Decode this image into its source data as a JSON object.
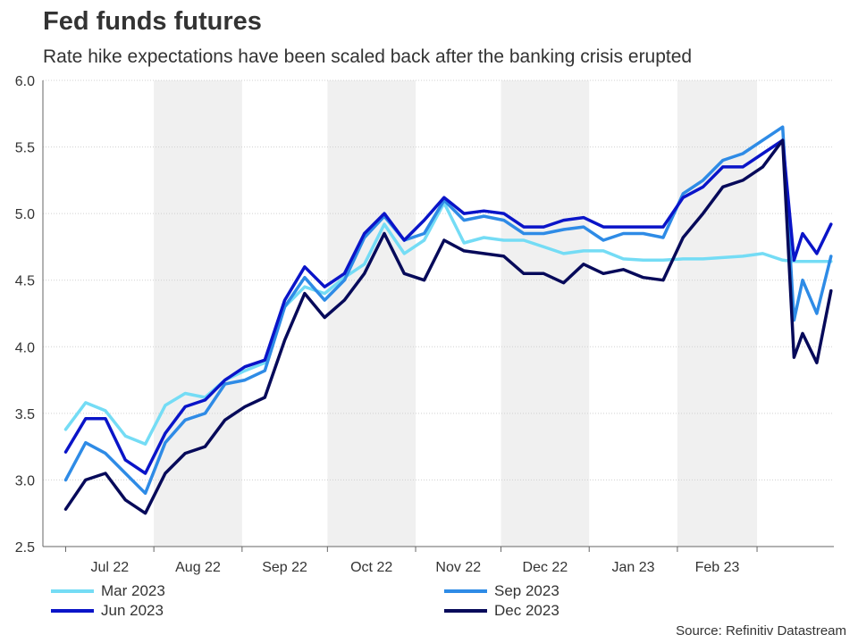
{
  "header": {
    "title": "Fed funds futures",
    "subtitle": "Rate hike expectations have been scaled back after the banking crisis erupted"
  },
  "source": "Source: Refinitiv Datastream",
  "chart_data": {
    "type": "line",
    "title": "Fed funds futures",
    "subtitle": "Rate hike expectations have been scaled back after the banking crisis erupted",
    "xlabel": "",
    "ylabel": "",
    "ylim": [
      2.5,
      6.0
    ],
    "yticks": [
      "2.5",
      "3.0",
      "3.5",
      "4.0",
      "4.5",
      "5.0",
      "5.5",
      "6.0"
    ],
    "grid": true,
    "shaded_months": [
      "Aug 22",
      "Oct 22",
      "Dec 22",
      "Feb 23"
    ],
    "month_labels": [
      "Jul 22",
      "Aug 22",
      "Sep 22",
      "Oct 22",
      "Nov 22",
      "Dec 22",
      "Jan 23",
      "Feb 23"
    ],
    "legend_placement": "bottom",
    "x": [
      "2022-07-01",
      "2022-07-08",
      "2022-07-15",
      "2022-07-22",
      "2022-07-29",
      "2022-08-05",
      "2022-08-12",
      "2022-08-19",
      "2022-08-26",
      "2022-09-02",
      "2022-09-09",
      "2022-09-16",
      "2022-09-23",
      "2022-09-30",
      "2022-10-07",
      "2022-10-14",
      "2022-10-21",
      "2022-10-28",
      "2022-11-04",
      "2022-11-11",
      "2022-11-18",
      "2022-11-25",
      "2022-12-02",
      "2022-12-09",
      "2022-12-16",
      "2022-12-23",
      "2022-12-30",
      "2023-01-06",
      "2023-01-13",
      "2023-01-20",
      "2023-01-27",
      "2023-02-03",
      "2023-02-10",
      "2023-02-17",
      "2023-02-24",
      "2023-03-03",
      "2023-03-10",
      "2023-03-14",
      "2023-03-17",
      "2023-03-22",
      "2023-03-27"
    ],
    "series": [
      {
        "name": "Mar 2023",
        "color": "#74dcf5",
        "values": [
          3.38,
          3.58,
          3.52,
          3.33,
          3.27,
          3.56,
          3.65,
          3.62,
          3.75,
          3.82,
          3.88,
          4.3,
          4.45,
          4.4,
          4.52,
          4.62,
          4.92,
          4.7,
          4.8,
          5.08,
          4.78,
          4.82,
          4.8,
          4.8,
          4.75,
          4.7,
          4.72,
          4.72,
          4.66,
          4.65,
          4.65,
          4.66,
          4.66,
          4.67,
          4.68,
          4.7,
          4.65,
          4.64,
          4.64,
          4.64,
          4.64
        ]
      },
      {
        "name": "Sep 2023",
        "color": "#2e8be6",
        "values": [
          3.0,
          3.28,
          3.2,
          3.05,
          2.9,
          3.28,
          3.45,
          3.5,
          3.72,
          3.75,
          3.82,
          4.3,
          4.52,
          4.35,
          4.5,
          4.82,
          4.98,
          4.8,
          4.85,
          5.1,
          4.95,
          4.98,
          4.95,
          4.85,
          4.85,
          4.88,
          4.9,
          4.8,
          4.85,
          4.85,
          4.82,
          5.15,
          5.25,
          5.4,
          5.45,
          5.55,
          5.65,
          4.2,
          4.5,
          4.25,
          4.68
        ]
      },
      {
        "name": "Jun 2023",
        "color": "#0a14c8",
        "values": [
          3.21,
          3.46,
          3.46,
          3.15,
          3.05,
          3.35,
          3.55,
          3.6,
          3.75,
          3.85,
          3.9,
          4.35,
          4.6,
          4.45,
          4.55,
          4.85,
          5.0,
          4.8,
          4.95,
          5.12,
          5.0,
          5.02,
          5.0,
          4.9,
          4.9,
          4.95,
          4.97,
          4.9,
          4.9,
          4.9,
          4.9,
          5.12,
          5.2,
          5.35,
          5.35,
          5.45,
          5.55,
          4.65,
          4.85,
          4.7,
          4.92
        ]
      },
      {
        "name": "Dec 2023",
        "color": "#070a5a",
        "values": [
          2.78,
          3.0,
          3.05,
          2.85,
          2.75,
          3.05,
          3.2,
          3.25,
          3.45,
          3.55,
          3.62,
          4.05,
          4.4,
          4.22,
          4.35,
          4.55,
          4.85,
          4.55,
          4.5,
          4.8,
          4.72,
          4.7,
          4.68,
          4.55,
          4.55,
          4.48,
          4.62,
          4.55,
          4.58,
          4.52,
          4.5,
          4.82,
          5.0,
          5.2,
          5.25,
          5.35,
          5.55,
          3.92,
          4.1,
          3.88,
          4.42
        ]
      }
    ]
  }
}
